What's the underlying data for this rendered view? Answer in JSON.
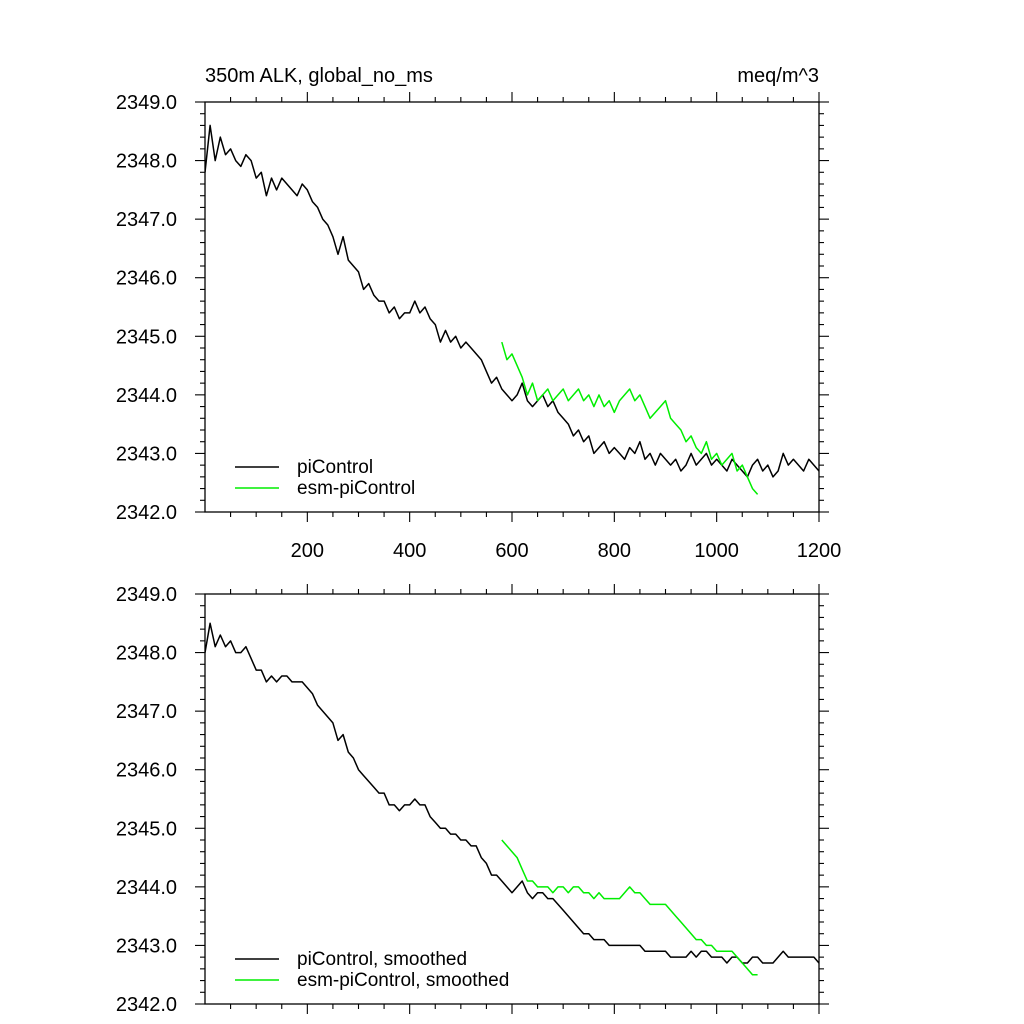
{
  "chart_data": [
    {
      "type": "line",
      "title_left": "350m ALK, global_no_ms",
      "title_right": "meq/m^3",
      "xlabel": "",
      "ylabel": "",
      "xlim": [
        0,
        1200
      ],
      "ylim": [
        2342.0,
        2349.0
      ],
      "xticks": [
        200,
        400,
        600,
        800,
        1000,
        1200
      ],
      "xtick_labels": [
        "200",
        "400",
        "600",
        "800",
        "1000",
        "1200"
      ],
      "yticks": [
        2342.0,
        2343.0,
        2344.0,
        2345.0,
        2346.0,
        2347.0,
        2348.0,
        2349.0
      ],
      "ytick_labels": [
        "2342.0",
        "2343.0",
        "2344.0",
        "2345.0",
        "2346.0",
        "2347.0",
        "2348.0",
        "2349.0"
      ],
      "legend_position": "bottom-left",
      "series": [
        {
          "name": "piControl",
          "color": "#000000",
          "x": [
            0,
            10,
            20,
            30,
            40,
            50,
            60,
            70,
            80,
            90,
            100,
            110,
            120,
            130,
            140,
            150,
            160,
            170,
            180,
            190,
            200,
            210,
            220,
            230,
            240,
            250,
            260,
            270,
            280,
            290,
            300,
            310,
            320,
            330,
            340,
            350,
            360,
            370,
            380,
            390,
            400,
            410,
            420,
            430,
            440,
            450,
            460,
            470,
            480,
            490,
            500,
            510,
            520,
            530,
            540,
            550,
            560,
            570,
            580,
            590,
            600,
            610,
            620,
            630,
            640,
            650,
            660,
            670,
            680,
            690,
            700,
            710,
            720,
            730,
            740,
            750,
            760,
            770,
            780,
            790,
            800,
            810,
            820,
            830,
            840,
            850,
            860,
            870,
            880,
            890,
            900,
            910,
            920,
            930,
            940,
            950,
            960,
            970,
            980,
            990,
            1000,
            1010,
            1020,
            1030,
            1040,
            1050,
            1060,
            1070,
            1080,
            1090,
            1100,
            1110,
            1120,
            1130,
            1140,
            1150,
            1160,
            1170,
            1180,
            1190,
            1200
          ],
          "values": [
            2347.8,
            2348.6,
            2348.0,
            2348.4,
            2348.1,
            2348.2,
            2348.0,
            2347.9,
            2348.1,
            2348.0,
            2347.7,
            2347.8,
            2347.4,
            2347.7,
            2347.5,
            2347.7,
            2347.6,
            2347.5,
            2347.4,
            2347.6,
            2347.5,
            2347.3,
            2347.2,
            2347.0,
            2346.9,
            2346.7,
            2346.4,
            2346.7,
            2346.3,
            2346.2,
            2346.1,
            2345.8,
            2345.9,
            2345.7,
            2345.6,
            2345.6,
            2345.4,
            2345.5,
            2345.3,
            2345.4,
            2345.4,
            2345.6,
            2345.4,
            2345.5,
            2345.3,
            2345.2,
            2344.9,
            2345.1,
            2344.9,
            2345.0,
            2344.8,
            2344.9,
            2344.8,
            2344.7,
            2344.6,
            2344.4,
            2344.2,
            2344.3,
            2344.1,
            2344.0,
            2343.9,
            2344.0,
            2344.2,
            2343.9,
            2343.8,
            2343.9,
            2344.0,
            2343.8,
            2343.9,
            2343.7,
            2343.6,
            2343.5,
            2343.3,
            2343.4,
            2343.2,
            2343.3,
            2343.0,
            2343.1,
            2343.2,
            2343.0,
            2343.1,
            2343.0,
            2342.9,
            2343.1,
            2343.0,
            2343.2,
            2342.9,
            2343.0,
            2342.8,
            2343.0,
            2342.9,
            2342.8,
            2342.9,
            2342.7,
            2342.8,
            2343.0,
            2342.8,
            2342.9,
            2343.0,
            2342.8,
            2342.9,
            2342.8,
            2342.7,
            2342.9,
            2342.8,
            2342.7,
            2342.6,
            2342.8,
            2342.9,
            2342.7,
            2342.8,
            2342.6,
            2342.7,
            2343.0,
            2342.8,
            2342.9,
            2342.8,
            2342.7,
            2342.9,
            2342.8,
            2342.7
          ]
        },
        {
          "name": "esm-piControl",
          "color": "#00ee00",
          "x": [
            580,
            590,
            600,
            610,
            620,
            630,
            640,
            650,
            660,
            670,
            680,
            690,
            700,
            710,
            720,
            730,
            740,
            750,
            760,
            770,
            780,
            790,
            800,
            810,
            820,
            830,
            840,
            850,
            860,
            870,
            880,
            890,
            900,
            910,
            920,
            930,
            940,
            950,
            960,
            970,
            980,
            990,
            1000,
            1010,
            1020,
            1030,
            1040,
            1050,
            1060,
            1070,
            1080
          ],
          "values": [
            2344.9,
            2344.6,
            2344.7,
            2344.5,
            2344.3,
            2344.0,
            2344.2,
            2343.9,
            2344.0,
            2344.1,
            2343.9,
            2344.0,
            2344.1,
            2343.9,
            2344.0,
            2344.1,
            2343.9,
            2344.0,
            2343.8,
            2344.0,
            2343.8,
            2343.9,
            2343.7,
            2343.9,
            2344.0,
            2344.1,
            2343.9,
            2344.0,
            2343.8,
            2343.6,
            2343.7,
            2343.8,
            2343.9,
            2343.6,
            2343.5,
            2343.4,
            2343.2,
            2343.3,
            2343.1,
            2343.0,
            2343.2,
            2342.9,
            2343.0,
            2342.8,
            2342.9,
            2343.0,
            2342.7,
            2342.8,
            2342.6,
            2342.4,
            2342.3
          ]
        }
      ]
    },
    {
      "type": "line",
      "title_left": "",
      "title_right": "",
      "xlabel": "",
      "ylabel": "",
      "xlim": [
        0,
        1200
      ],
      "ylim": [
        2342.0,
        2349.0
      ],
      "xticks": [
        200,
        400,
        600,
        800,
        1000,
        1200
      ],
      "xtick_labels": [],
      "yticks": [
        2342.0,
        2343.0,
        2344.0,
        2345.0,
        2346.0,
        2347.0,
        2348.0,
        2349.0
      ],
      "ytick_labels": [
        "2342.0",
        "2343.0",
        "2344.0",
        "2345.0",
        "2346.0",
        "2347.0",
        "2348.0",
        "2349.0"
      ],
      "legend_position": "bottom-left",
      "series": [
        {
          "name": "piControl, smoothed",
          "color": "#000000",
          "x": [
            0,
            10,
            20,
            30,
            40,
            50,
            60,
            70,
            80,
            90,
            100,
            110,
            120,
            130,
            140,
            150,
            160,
            170,
            180,
            190,
            200,
            210,
            220,
            230,
            240,
            250,
            260,
            270,
            280,
            290,
            300,
            310,
            320,
            330,
            340,
            350,
            360,
            370,
            380,
            390,
            400,
            410,
            420,
            430,
            440,
            450,
            460,
            470,
            480,
            490,
            500,
            510,
            520,
            530,
            540,
            550,
            560,
            570,
            580,
            590,
            600,
            610,
            620,
            630,
            640,
            650,
            660,
            670,
            680,
            690,
            700,
            710,
            720,
            730,
            740,
            750,
            760,
            770,
            780,
            790,
            800,
            810,
            820,
            830,
            840,
            850,
            860,
            870,
            880,
            890,
            900,
            910,
            920,
            930,
            940,
            950,
            960,
            970,
            980,
            990,
            1000,
            1010,
            1020,
            1030,
            1040,
            1050,
            1060,
            1070,
            1080,
            1090,
            1100,
            1110,
            1120,
            1130,
            1140,
            1150,
            1160,
            1170,
            1180,
            1190,
            1200
          ],
          "values": [
            2348.0,
            2348.5,
            2348.1,
            2348.3,
            2348.1,
            2348.2,
            2348.0,
            2348.0,
            2348.1,
            2347.9,
            2347.7,
            2347.7,
            2347.5,
            2347.6,
            2347.5,
            2347.6,
            2347.6,
            2347.5,
            2347.5,
            2347.5,
            2347.4,
            2347.3,
            2347.1,
            2347.0,
            2346.9,
            2346.8,
            2346.5,
            2346.6,
            2346.3,
            2346.2,
            2346.0,
            2345.9,
            2345.8,
            2345.7,
            2345.6,
            2345.6,
            2345.4,
            2345.4,
            2345.3,
            2345.4,
            2345.4,
            2345.5,
            2345.4,
            2345.4,
            2345.2,
            2345.1,
            2345.0,
            2345.0,
            2344.9,
            2344.9,
            2344.8,
            2344.8,
            2344.7,
            2344.7,
            2344.5,
            2344.4,
            2344.2,
            2344.2,
            2344.1,
            2344.0,
            2343.9,
            2344.0,
            2344.1,
            2343.9,
            2343.8,
            2343.9,
            2343.9,
            2343.8,
            2343.8,
            2343.7,
            2343.6,
            2343.5,
            2343.4,
            2343.3,
            2343.2,
            2343.2,
            2343.1,
            2343.1,
            2343.1,
            2343.0,
            2343.0,
            2343.0,
            2343.0,
            2343.0,
            2343.0,
            2343.0,
            2342.9,
            2342.9,
            2342.9,
            2342.9,
            2342.9,
            2342.8,
            2342.8,
            2342.8,
            2342.8,
            2342.9,
            2342.8,
            2342.9,
            2342.9,
            2342.8,
            2342.8,
            2342.8,
            2342.7,
            2342.8,
            2342.8,
            2342.7,
            2342.7,
            2342.8,
            2342.8,
            2342.7,
            2342.7,
            2342.7,
            2342.8,
            2342.9,
            2342.8,
            2342.8,
            2342.8,
            2342.8,
            2342.8,
            2342.8,
            2342.7
          ]
        },
        {
          "name": "esm-piControl, smoothed",
          "color": "#00ee00",
          "x": [
            580,
            590,
            600,
            610,
            620,
            630,
            640,
            650,
            660,
            670,
            680,
            690,
            700,
            710,
            720,
            730,
            740,
            750,
            760,
            770,
            780,
            790,
            800,
            810,
            820,
            830,
            840,
            850,
            860,
            870,
            880,
            890,
            900,
            910,
            920,
            930,
            940,
            950,
            960,
            970,
            980,
            990,
            1000,
            1010,
            1020,
            1030,
            1040,
            1050,
            1060,
            1070,
            1080
          ],
          "values": [
            2344.8,
            2344.7,
            2344.6,
            2344.5,
            2344.3,
            2344.1,
            2344.1,
            2344.0,
            2344.0,
            2344.0,
            2343.9,
            2344.0,
            2344.0,
            2343.9,
            2344.0,
            2344.0,
            2343.9,
            2343.9,
            2343.8,
            2343.9,
            2343.8,
            2343.8,
            2343.8,
            2343.8,
            2343.9,
            2344.0,
            2343.9,
            2343.9,
            2343.8,
            2343.7,
            2343.7,
            2343.7,
            2343.7,
            2343.6,
            2343.5,
            2343.4,
            2343.3,
            2343.2,
            2343.1,
            2343.1,
            2343.0,
            2343.0,
            2342.9,
            2342.9,
            2342.9,
            2342.9,
            2342.8,
            2342.7,
            2342.6,
            2342.5,
            2342.5
          ]
        }
      ]
    }
  ]
}
